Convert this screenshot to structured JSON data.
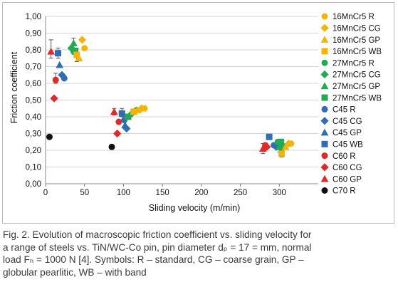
{
  "chart_data": {
    "type": "scatter",
    "title": "",
    "xlabel": "Sliding velocity (m/min)",
    "ylabel": "Friction coefficient",
    "xlim": [
      0,
      350
    ],
    "ylim": [
      0,
      1.0
    ],
    "xticks": [
      "0",
      "50",
      "100",
      "150",
      "200",
      "250",
      "300"
    ],
    "yticks": [
      "0,00",
      "0,10",
      "0,20",
      "0,30",
      "0,40",
      "0,50",
      "0,60",
      "0,70",
      "0,80",
      "0,90",
      "1,00"
    ],
    "grid": true,
    "legend_position": "right",
    "series": [
      {
        "name": "16MnCr5 R",
        "color": "#f5b400",
        "marker": "circle",
        "points": [
          [
            50,
            0.81
          ],
          [
            127,
            0.45
          ],
          [
            315,
            0.24
          ]
        ]
      },
      {
        "name": "16MnCr5 CG",
        "color": "#f5b400",
        "marker": "diamond",
        "points": [
          [
            47,
            0.86
          ],
          [
            123,
            0.45
          ],
          [
            312,
            0.24
          ]
        ]
      },
      {
        "name": "16MnCr5 GP",
        "color": "#f5b400",
        "marker": "triangle",
        "points": [
          [
            43,
            0.75
          ],
          [
            118,
            0.44
          ],
          [
            308,
            0.22
          ]
        ]
      },
      {
        "name": "16MnCr5 WB",
        "color": "#f5b400",
        "marker": "square",
        "points": [
          [
            40,
            0.77
          ],
          [
            113,
            0.43
          ],
          [
            303,
            0.18
          ]
        ]
      },
      {
        "name": "27MnCr5 R",
        "color": "#22aa55",
        "marker": "circle",
        "points": [
          [
            36,
            0.79
          ],
          [
            117,
            0.44
          ],
          [
            298,
            0.25
          ]
        ]
      },
      {
        "name": "27MnCr5 CG",
        "color": "#22aa55",
        "marker": "diamond",
        "points": [
          [
            33,
            0.81
          ],
          [
            111,
            0.42
          ],
          [
            304,
            0.23
          ]
        ]
      },
      {
        "name": "27MnCr5 GP",
        "color": "#22aa55",
        "marker": "triangle",
        "points": [
          [
            36,
            0.84
          ],
          [
            113,
            0.43
          ],
          [
            300,
            0.22
          ]
        ]
      },
      {
        "name": "27MnCr5 WB",
        "color": "#22aa55",
        "marker": "square",
        "points": [
          [
            38,
            0.79
          ],
          [
            106,
            0.4
          ],
          [
            302,
            0.25
          ]
        ]
      },
      {
        "name": "C45 R",
        "color": "#2f6db5",
        "marker": "circle",
        "points": [
          [
            24,
            0.63
          ],
          [
            101,
            0.38
          ],
          [
            293,
            0.23
          ]
        ]
      },
      {
        "name": "C45 CG",
        "color": "#2f6db5",
        "marker": "diamond",
        "points": [
          [
            21,
            0.65
          ],
          [
            104,
            0.33
          ],
          [
            296,
            0.22
          ]
        ]
      },
      {
        "name": "C45 GP",
        "color": "#2f6db5",
        "marker": "triangle",
        "points": [
          [
            18,
            0.71
          ],
          [
            102,
            0.35
          ],
          [
            297,
            0.24
          ]
        ]
      },
      {
        "name": "C45 WB",
        "color": "#2f6db5",
        "marker": "square",
        "points": [
          [
            16,
            0.78
          ],
          [
            98,
            0.42
          ],
          [
            287,
            0.28
          ]
        ]
      },
      {
        "name": "C60 R",
        "color": "#e02a2a",
        "marker": "circle",
        "points": [
          [
            13,
            0.62
          ],
          [
            94,
            0.37
          ],
          [
            282,
            0.23
          ]
        ]
      },
      {
        "name": "C60 CG",
        "color": "#e02a2a",
        "marker": "diamond",
        "points": [
          [
            11,
            0.51
          ],
          [
            92,
            0.3
          ],
          [
            284,
            0.22
          ]
        ]
      },
      {
        "name": "C60 GP",
        "color": "#e02a2a",
        "marker": "triangle",
        "points": [
          [
            7,
            0.79
          ],
          [
            88,
            0.43
          ],
          [
            279,
            0.21
          ]
        ]
      },
      {
        "name": "C70 R",
        "color": "#111111",
        "marker": "circle",
        "points": [
          [
            5,
            0.28
          ],
          [
            85,
            0.22
          ]
        ]
      }
    ],
    "error_bars": [
      {
        "x": 7,
        "low": 0.75,
        "high": 0.86,
        "color": "#555555"
      },
      {
        "x": 36,
        "low": 0.79,
        "high": 0.87,
        "color": "#555555"
      },
      {
        "x": 40,
        "low": 0.73,
        "high": 0.81,
        "color": "#555555"
      },
      {
        "x": 13,
        "low": 0.6,
        "high": 0.66,
        "color": "#555555"
      },
      {
        "x": 16,
        "low": 0.75,
        "high": 0.81,
        "color": "#555555"
      },
      {
        "x": 88,
        "low": 0.41,
        "high": 0.45,
        "color": "#555555"
      },
      {
        "x": 98,
        "low": 0.4,
        "high": 0.45,
        "color": "#555555"
      },
      {
        "x": 279,
        "low": 0.18,
        "high": 0.24,
        "color": "#555555"
      },
      {
        "x": 300,
        "low": 0.19,
        "high": 0.25,
        "color": "#555555"
      },
      {
        "x": 303,
        "low": 0.16,
        "high": 0.2,
        "color": "#555555"
      }
    ]
  },
  "caption": {
    "lines": [
      "Fig. 2. Evolution of macroscopic friction coefficient vs. sliding velocity for",
      "a range of steels vs. TiN/WC-Co pin, pin diameter dₚ = 17 = mm, normal",
      "load Fₙ = 1000 N [4]. Symbols: R – standard, CG – coarse grain, GP –",
      "globular pearlitic, WB – with band"
    ]
  }
}
